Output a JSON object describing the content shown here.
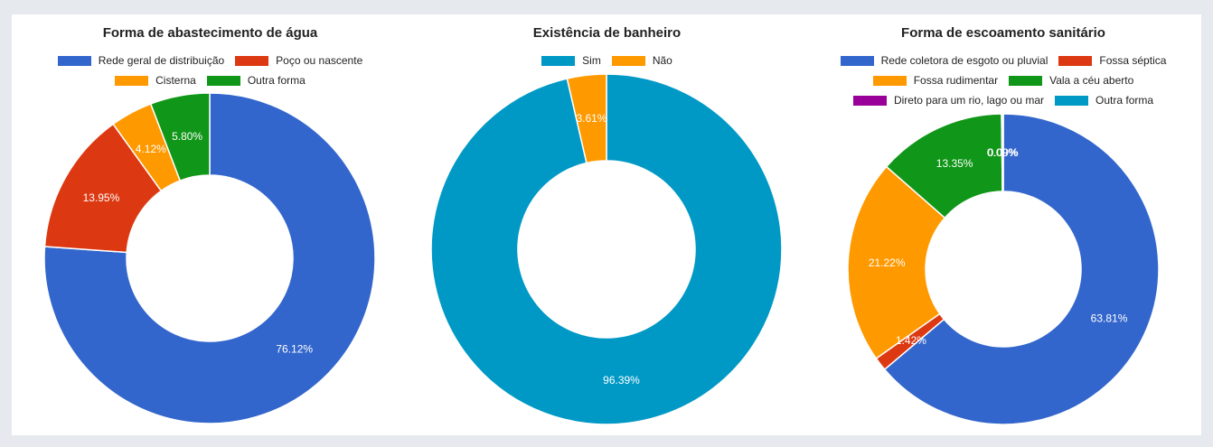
{
  "chart_data": [
    {
      "type": "pie",
      "title": "Forma de abastecimento de água",
      "legend_placement": "top",
      "legend_rows": [
        [
          0,
          1
        ],
        [
          2,
          3
        ]
      ],
      "labels": [
        "Rede geral de distribuição",
        "Poço ou nascente",
        "Cisterna",
        "Outra forma"
      ],
      "values": [
        76.12,
        13.95,
        4.12,
        5.8
      ],
      "value_labels": [
        "76.12%",
        "13.95%",
        "4.12%",
        "5.80%"
      ],
      "colors": [
        "#3366cc",
        "#dc3912",
        "#ff9900",
        "#109618"
      ]
    },
    {
      "type": "pie",
      "title": "Existência de banheiro",
      "legend_placement": "top",
      "legend_rows": [
        [
          0,
          1
        ]
      ],
      "labels": [
        "Sim",
        "Não"
      ],
      "values": [
        96.39,
        3.61
      ],
      "value_labels": [
        "96.39%",
        "3.61%"
      ],
      "colors": [
        "#0099c6",
        "#ff9900"
      ]
    },
    {
      "type": "pie",
      "title": "Forma de escoamento sanitário",
      "legend_placement": "top",
      "legend_rows": [
        [
          0,
          1
        ],
        [
          2,
          3
        ],
        [
          4,
          5
        ]
      ],
      "labels": [
        "Rede coletora de esgoto ou pluvial",
        "Fossa séptica",
        "Fossa rudimentar",
        "Vala a céu aberto",
        "Direto para um rio, lago ou mar",
        "Outra forma"
      ],
      "values": [
        63.81,
        1.42,
        21.22,
        13.35,
        0.09,
        0.09
      ],
      "value_labels": [
        "63.81%",
        "1.42%",
        "21.22%",
        "13.35%",
        "0.09%",
        "0.09%"
      ],
      "colors": [
        "#3366cc",
        "#dc3912",
        "#ff9900",
        "#109618",
        "#990099",
        "#0099c6"
      ]
    }
  ]
}
